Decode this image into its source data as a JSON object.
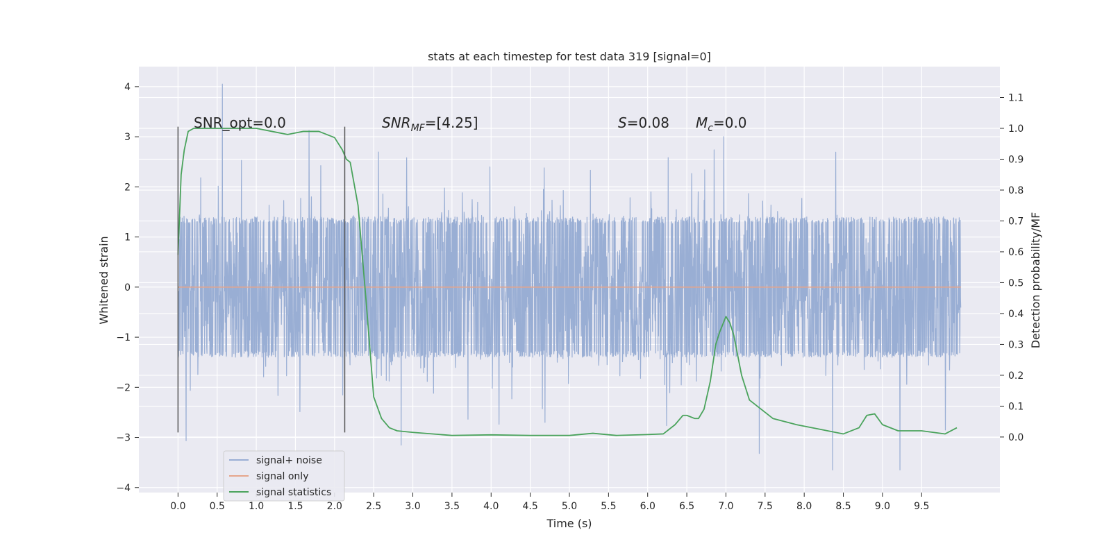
{
  "chart_data": {
    "type": "line",
    "title": "stats at each timestep for test data 319 [signal=0]",
    "xlabel": "Time (s)",
    "ylabel": "Whitened strain",
    "y2label": "Detection probability/MF",
    "xlim": [
      -0.5,
      10.5
    ],
    "ylim": [
      -4.1,
      4.4
    ],
    "y2lim": [
      -0.18,
      1.2
    ],
    "x_ticks": [
      "0.0",
      "0.5",
      "1.0",
      "1.5",
      "2.0",
      "2.5",
      "3.0",
      "3.5",
      "4.0",
      "4.5",
      "5.0",
      "5.5",
      "6.0",
      "6.5",
      "7.0",
      "7.5",
      "8.0",
      "8.5",
      "9.0",
      "9.5"
    ],
    "y_ticks": [
      "4",
      "3",
      "2",
      "1",
      "0",
      "−1",
      "−2",
      "−3",
      "−4"
    ],
    "y2_ticks": [
      "1.1",
      "1.0",
      "0.9",
      "0.8",
      "0.7",
      "0.6",
      "0.5",
      "0.4",
      "0.3",
      "0.2",
      "0.1",
      "0.0"
    ],
    "grid": true,
    "legend_position": "lower-left",
    "annotations": {
      "snr_opt": "SNR_opt=0.0",
      "snr_mf_main": "SNR",
      "snr_mf_sub": "MF",
      "snr_mf_rest": "=[4.25]",
      "s_main": "S",
      "s_rest": "=0.08",
      "mc_main": "M",
      "mc_sub": "c",
      "mc_rest": "=0.0"
    },
    "markers": {
      "x": [
        0.0,
        2.13
      ],
      "y_range": [
        -2.9,
        3.2
      ]
    },
    "series": [
      {
        "name": "signal+ noise",
        "color": "#99aed4",
        "x_range": [
          0.0,
          10.0
        ],
        "typical_range": [
          -1.4,
          1.4
        ],
        "peak_range": [
          -3.65,
          4.05
        ],
        "samples": 3000
      },
      {
        "name": "signal only",
        "color": "#e6a58b",
        "x": [
          0.0,
          10.0
        ],
        "y": [
          0.0,
          0.0
        ]
      },
      {
        "name": "signal statistics",
        "color": "#4aa35c",
        "axis": "right",
        "x": [
          0.0,
          0.04,
          0.08,
          0.13,
          0.2,
          0.3,
          0.5,
          0.8,
          1.0,
          1.2,
          1.4,
          1.5,
          1.6,
          1.8,
          2.0,
          2.1,
          2.15,
          2.2,
          2.3,
          2.4,
          2.5,
          2.6,
          2.7,
          2.8,
          3.0,
          3.5,
          4.0,
          4.5,
          5.0,
          5.3,
          5.6,
          6.0,
          6.2,
          6.35,
          6.45,
          6.5,
          6.6,
          6.65,
          6.72,
          6.8,
          6.87,
          6.92,
          7.0,
          7.05,
          7.1,
          7.2,
          7.3,
          7.4,
          7.6,
          7.9,
          8.2,
          8.5,
          8.7,
          8.8,
          8.9,
          9.0,
          9.2,
          9.5,
          9.8,
          9.95
        ],
        "y": [
          0.59,
          0.85,
          0.93,
          0.99,
          1.0,
          1.0,
          1.0,
          1.0,
          1.0,
          0.99,
          0.98,
          0.985,
          0.99,
          0.99,
          0.97,
          0.93,
          0.9,
          0.89,
          0.75,
          0.45,
          0.13,
          0.06,
          0.03,
          0.02,
          0.015,
          0.005,
          0.007,
          0.005,
          0.005,
          0.012,
          0.005,
          0.008,
          0.01,
          0.04,
          0.07,
          0.07,
          0.06,
          0.06,
          0.09,
          0.18,
          0.3,
          0.34,
          0.39,
          0.37,
          0.33,
          0.2,
          0.12,
          0.1,
          0.06,
          0.04,
          0.025,
          0.01,
          0.03,
          0.07,
          0.075,
          0.04,
          0.02,
          0.02,
          0.01,
          0.03
        ]
      }
    ]
  }
}
